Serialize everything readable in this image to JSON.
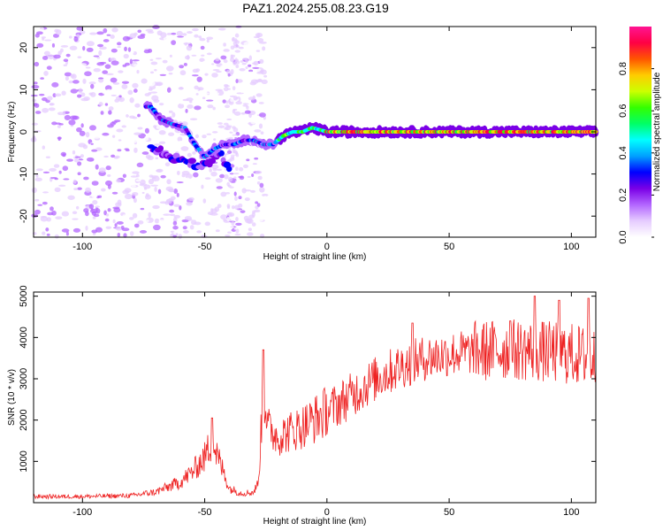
{
  "title": "PAZ1.2024.255.08.23.G19",
  "chart_data": [
    {
      "type": "heatmap",
      "xlabel": "Height of straight line (km)",
      "ylabel": "Frequency (Hz)",
      "xlim": [
        -120,
        110
      ],
      "ylim": [
        -25,
        25
      ],
      "xticks": [
        -100,
        -50,
        0,
        50,
        100
      ],
      "yticks": [
        -20,
        -10,
        0,
        10,
        20
      ],
      "colorbar": {
        "label": "Normalized spectral amplitude",
        "range": [
          0,
          1
        ],
        "ticks": [
          0.0,
          0.2,
          0.4,
          0.6,
          0.8
        ],
        "colormap": [
          "#ffffff",
          "#e6ccff",
          "#b366ff",
          "#7a00e6",
          "#0000ff",
          "#00a0ff",
          "#00ffff",
          "#00ff66",
          "#33ff00",
          "#ccff00",
          "#ffcc00",
          "#ff5500",
          "#ff0044",
          "#ff1493"
        ]
      },
      "ridge": [
        {
          "x": -72,
          "y": 6
        },
        {
          "x": -68,
          "y": 3
        },
        {
          "x": -64,
          "y": 2
        },
        {
          "x": -58,
          "y": 1
        },
        {
          "x": -54,
          "y": -3
        },
        {
          "x": -50,
          "y": -6
        },
        {
          "x": -46,
          "y": -4
        },
        {
          "x": -42,
          "y": -3
        },
        {
          "x": -38,
          "y": -3
        },
        {
          "x": -34,
          "y": -2
        },
        {
          "x": -30,
          "y": -2
        },
        {
          "x": -26,
          "y": -3
        },
        {
          "x": -22,
          "y": -3
        },
        {
          "x": -18,
          "y": -1
        },
        {
          "x": -14,
          "y": 0
        },
        {
          "x": -10,
          "y": 0
        },
        {
          "x": -6,
          "y": 1
        },
        {
          "x": 0,
          "y": 0
        },
        {
          "x": 10,
          "y": 0
        },
        {
          "x": 20,
          "y": 0
        },
        {
          "x": 40,
          "y": 0
        },
        {
          "x": 60,
          "y": 0
        },
        {
          "x": 80,
          "y": 0
        },
        {
          "x": 100,
          "y": 0
        },
        {
          "x": 110,
          "y": 0
        }
      ],
      "lower_branch": [
        {
          "x": -70,
          "y": -4
        },
        {
          "x": -64,
          "y": -6
        },
        {
          "x": -58,
          "y": -7
        },
        {
          "x": -52,
          "y": -8
        },
        {
          "x": -48,
          "y": -7
        },
        {
          "x": -44,
          "y": -5
        },
        {
          "x": -40,
          "y": -9
        }
      ]
    },
    {
      "type": "line",
      "xlabel": "Height of straight line (km)",
      "ylabel": "SNR (10 * v/v)",
      "xlim": [
        -120,
        110
      ],
      "ylim": [
        0,
        5100
      ],
      "xticks": [
        -100,
        -50,
        0,
        50,
        100
      ],
      "yticks": [
        1000,
        2000,
        3000,
        4000,
        5000
      ],
      "color": "#ee2222",
      "envelope": [
        {
          "x": -120,
          "y": 150
        },
        {
          "x": -100,
          "y": 150
        },
        {
          "x": -80,
          "y": 170
        },
        {
          "x": -70,
          "y": 260
        },
        {
          "x": -60,
          "y": 500
        },
        {
          "x": -55,
          "y": 750
        },
        {
          "x": -50,
          "y": 1100
        },
        {
          "x": -47,
          "y": 1500
        },
        {
          "x": -44,
          "y": 1000
        },
        {
          "x": -42,
          "y": 700
        },
        {
          "x": -40,
          "y": 350
        },
        {
          "x": -35,
          "y": 230
        },
        {
          "x": -30,
          "y": 250
        },
        {
          "x": -28,
          "y": 500
        },
        {
          "x": -26,
          "y": 2800
        },
        {
          "x": -24,
          "y": 1800
        },
        {
          "x": -20,
          "y": 1600
        },
        {
          "x": -10,
          "y": 1850
        },
        {
          "x": 0,
          "y": 2200
        },
        {
          "x": 10,
          "y": 2600
        },
        {
          "x": 20,
          "y": 3000
        },
        {
          "x": 30,
          "y": 3300
        },
        {
          "x": 40,
          "y": 3500
        },
        {
          "x": 50,
          "y": 3600
        },
        {
          "x": 60,
          "y": 3650
        },
        {
          "x": 70,
          "y": 3700
        },
        {
          "x": 80,
          "y": 3700
        },
        {
          "x": 90,
          "y": 3650
        },
        {
          "x": 100,
          "y": 3600
        },
        {
          "x": 110,
          "y": 3500
        }
      ],
      "peaks": [
        {
          "x": -47,
          "y": 2050
        },
        {
          "x": -26,
          "y": 3700
        },
        {
          "x": 35,
          "y": 4350
        },
        {
          "x": 75,
          "y": 4400
        },
        {
          "x": 85,
          "y": 5000
        },
        {
          "x": 95,
          "y": 4900
        },
        {
          "x": 107,
          "y": 4950
        }
      ]
    }
  ]
}
